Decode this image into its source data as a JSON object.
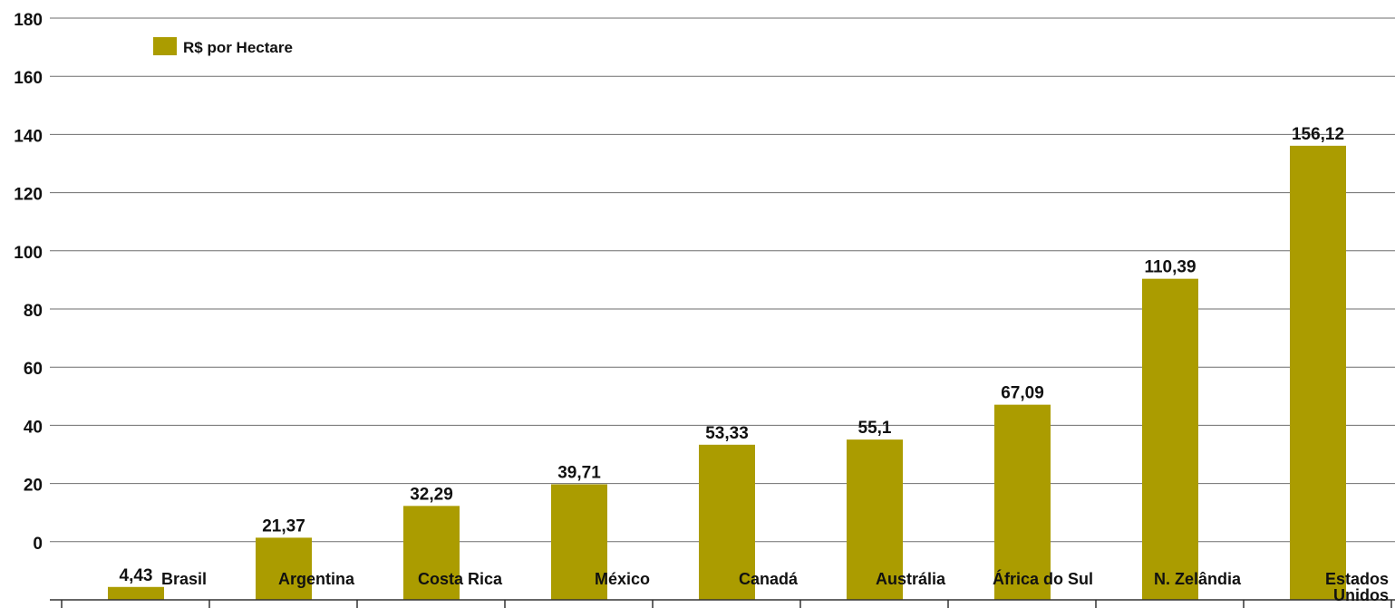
{
  "chart_data": {
    "type": "bar",
    "categories": [
      "Brasil",
      "Argentina",
      "Costa Rica",
      "México",
      "Canadá",
      "Austrália",
      "África do Sul",
      "N. Zelândia",
      "Estados Unidos"
    ],
    "category_lines": [
      [
        "Brasil"
      ],
      [
        "Argentina"
      ],
      [
        "Costa Rica"
      ],
      [
        "México"
      ],
      [
        "Canadá"
      ],
      [
        "Austrália"
      ],
      [
        "África do Sul"
      ],
      [
        "N. Zelândia"
      ],
      [
        "Estados",
        "Unidos"
      ]
    ],
    "values": [
      4.43,
      21.37,
      32.29,
      39.71,
      53.33,
      55.1,
      67.09,
      110.39,
      156.12
    ],
    "value_labels": [
      "4,43",
      "21,37",
      "32,29",
      "39,71",
      "53,33",
      "55,1",
      "67,09",
      "110,39",
      "156,12"
    ],
    "y_ticks": [
      0,
      20,
      40,
      60,
      80,
      100,
      120,
      140,
      160,
      180
    ],
    "ylim": [
      0,
      180
    ],
    "grid": true,
    "legend": {
      "label": "R$ por Hectare",
      "position": "top-left"
    },
    "title": "",
    "xlabel": "",
    "ylabel": "",
    "bar_color": "#ab9c00"
  }
}
